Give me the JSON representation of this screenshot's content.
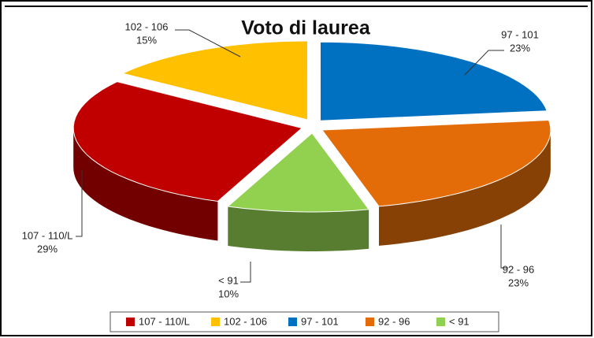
{
  "chart_data": {
    "type": "pie3d",
    "title": "Voto di laurea",
    "categories": [
      "97 - 101",
      "92 - 96",
      "< 91",
      "107 - 110/L",
      "102 - 106"
    ],
    "values": [
      23,
      23,
      10,
      29,
      15
    ],
    "value_labels": [
      "23%",
      "23%",
      "10%",
      "29%",
      "15%"
    ],
    "colors": [
      "#0070c0",
      "#e36c09",
      "#92d050",
      "#c00000",
      "#ffc000"
    ],
    "legend_order": [
      3,
      4,
      0,
      1,
      2
    ],
    "legend": "bottom"
  }
}
